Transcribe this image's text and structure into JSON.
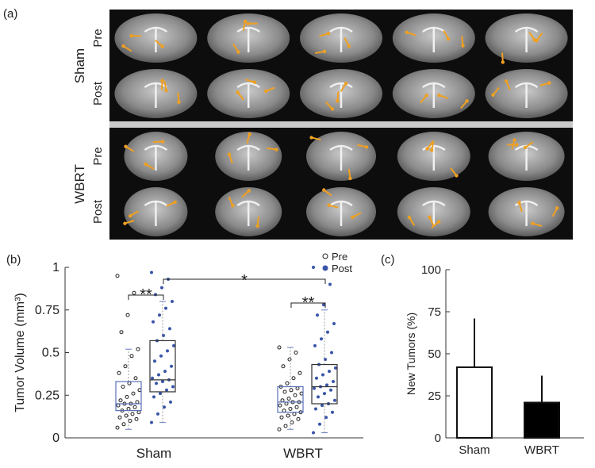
{
  "figure_a": {
    "label": "(a)",
    "groups": [
      {
        "name": "Sham",
        "rows": [
          "Pre",
          "Post"
        ]
      },
      {
        "name": "WBRT",
        "rows": [
          "Pre",
          "Post"
        ]
      }
    ]
  },
  "chart_data": [
    {
      "type": "box",
      "panel": "(b)",
      "ylabel": "Tumor Volume (mm³)",
      "categories": [
        "Sham",
        "WBRT"
      ],
      "ylim": [
        0,
        1
      ],
      "yticks": [
        0,
        0.25,
        0.5,
        0.75,
        1
      ],
      "annotations": [
        "**",
        "**",
        "*"
      ],
      "series": [
        {
          "name": "Pre",
          "color": "#222222",
          "boxes": [
            {
              "min": 0.05,
              "q1": 0.16,
              "median": 0.2,
              "q3": 0.33,
              "max": 0.52
            },
            {
              "min": 0.05,
              "q1": 0.15,
              "median": 0.21,
              "q3": 0.3,
              "max": 0.53
            }
          ],
          "points": [
            [
              0.06,
              0.08,
              0.1,
              0.11,
              0.12,
              0.13,
              0.14,
              0.15,
              0.16,
              0.17,
              0.18,
              0.19,
              0.2,
              0.2,
              0.21,
              0.22,
              0.24,
              0.26,
              0.28,
              0.3,
              0.32,
              0.35,
              0.38,
              0.42,
              0.48,
              0.52,
              0.62,
              0.72,
              0.85,
              0.95
            ],
            [
              0.05,
              0.07,
              0.09,
              0.11,
              0.12,
              0.13,
              0.14,
              0.15,
              0.16,
              0.17,
              0.18,
              0.19,
              0.2,
              0.21,
              0.21,
              0.22,
              0.23,
              0.25,
              0.26,
              0.27,
              0.28,
              0.29,
              0.3,
              0.32,
              0.35,
              0.38,
              0.42,
              0.46,
              0.5,
              0.53
            ]
          ]
        },
        {
          "name": "Post",
          "color": "#3a55a8",
          "boxes": [
            {
              "min": 0.09,
              "q1": 0.27,
              "median": 0.34,
              "q3": 0.57,
              "max": 0.8
            },
            {
              "min": 0.03,
              "q1": 0.2,
              "median": 0.3,
              "q3": 0.43,
              "max": 0.75
            }
          ],
          "points": [
            [
              0.09,
              0.14,
              0.18,
              0.21,
              0.24,
              0.26,
              0.28,
              0.3,
              0.32,
              0.33,
              0.34,
              0.35,
              0.37,
              0.39,
              0.42,
              0.45,
              0.48,
              0.51,
              0.54,
              0.57,
              0.6,
              0.64,
              0.68,
              0.72,
              0.76,
              0.8,
              0.84,
              0.88,
              0.93,
              0.97
            ],
            [
              0.03,
              0.08,
              0.12,
              0.15,
              0.17,
              0.19,
              0.2,
              0.22,
              0.24,
              0.26,
              0.28,
              0.29,
              0.3,
              0.31,
              0.33,
              0.35,
              0.37,
              0.39,
              0.41,
              0.43,
              0.46,
              0.5,
              0.54,
              0.58,
              0.62,
              0.67,
              0.72,
              0.78,
              0.9,
              1.0
            ]
          ]
        }
      ]
    },
    {
      "type": "bar",
      "panel": "(c)",
      "ylabel": "New Tumors (%)",
      "categories": [
        "Sham",
        "WBRT"
      ],
      "values": [
        42,
        21
      ],
      "errors": [
        29,
        16
      ],
      "colors": [
        "#ffffff",
        "#000000"
      ],
      "ylim": [
        0,
        100
      ],
      "yticks": [
        0,
        25,
        50,
        75,
        100
      ]
    }
  ]
}
